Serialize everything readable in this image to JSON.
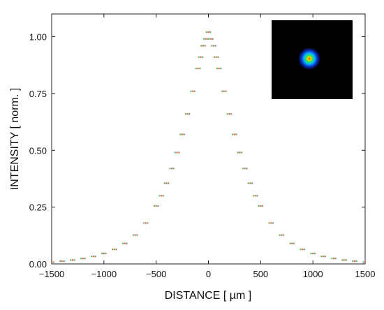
{
  "chart_data": {
    "type": "scatter",
    "xlabel": "DISTANCE [ µm ]",
    "ylabel": "INTENSITY [ norm. ]",
    "xlim": [
      -1500,
      1500
    ],
    "ylim": [
      0,
      1.1
    ],
    "x_ticks": [
      -1500,
      -1000,
      -500,
      0,
      500,
      1000,
      1500
    ],
    "y_ticks": [
      0.0,
      0.25,
      0.5,
      0.75,
      1.0
    ],
    "x_tick_labels": [
      "−1500",
      "−1000",
      "−500",
      "0",
      "500",
      "1000",
      "1500"
    ],
    "y_tick_labels": [
      "0.00",
      "0.25",
      "0.50",
      "0.75",
      "1.00"
    ],
    "grid": false,
    "legend": "none",
    "inset": "beam-spot-image",
    "series": [
      {
        "color": "#d9534f",
        "shift": 0,
        "x": [
          -1500,
          -1400,
          -1300,
          -1200,
          -1100,
          -1000,
          -900,
          -800,
          -700,
          -600,
          -500,
          -450,
          -400,
          -350,
          -300,
          -250,
          -200,
          -150,
          -100,
          -75,
          -50,
          -25,
          0,
          25,
          50,
          75,
          100,
          150,
          200,
          250,
          300,
          350,
          400,
          450,
          500,
          600,
          700,
          800,
          900,
          1000,
          1100,
          1200,
          1300,
          1400,
          1500
        ],
        "y": [
          0.008,
          0.012,
          0.017,
          0.024,
          0.033,
          0.046,
          0.064,
          0.09,
          0.127,
          0.18,
          0.255,
          0.3,
          0.355,
          0.42,
          0.49,
          0.57,
          0.66,
          0.76,
          0.86,
          0.91,
          0.96,
          0.99,
          1.02,
          0.99,
          0.96,
          0.91,
          0.86,
          0.76,
          0.66,
          0.57,
          0.49,
          0.42,
          0.355,
          0.3,
          0.255,
          0.18,
          0.127,
          0.09,
          0.064,
          0.046,
          0.033,
          0.024,
          0.017,
          0.012,
          0.008
        ]
      },
      {
        "color": "#4a90d9",
        "shift": 18,
        "x": [
          -1500,
          -1400,
          -1300,
          -1200,
          -1100,
          -1000,
          -900,
          -800,
          -700,
          -600,
          -500,
          -450,
          -400,
          -350,
          -300,
          -250,
          -200,
          -150,
          -100,
          -75,
          -50,
          -25,
          0,
          25,
          50,
          75,
          100,
          150,
          200,
          250,
          300,
          350,
          400,
          450,
          500,
          600,
          700,
          800,
          900,
          1000,
          1100,
          1200,
          1300,
          1400,
          1500
        ],
        "y": [
          0.008,
          0.012,
          0.017,
          0.024,
          0.033,
          0.046,
          0.064,
          0.09,
          0.127,
          0.18,
          0.255,
          0.3,
          0.355,
          0.42,
          0.49,
          0.57,
          0.66,
          0.76,
          0.86,
          0.91,
          0.96,
          0.99,
          1.02,
          0.99,
          0.96,
          0.91,
          0.86,
          0.76,
          0.66,
          0.57,
          0.49,
          0.42,
          0.355,
          0.3,
          0.255,
          0.18,
          0.127,
          0.09,
          0.064,
          0.046,
          0.033,
          0.024,
          0.017,
          0.012,
          0.008
        ]
      },
      {
        "color": "#5cb85c",
        "shift": -18,
        "x": [
          -1500,
          -1400,
          -1300,
          -1200,
          -1100,
          -1000,
          -900,
          -800,
          -700,
          -600,
          -500,
          -450,
          -400,
          -350,
          -300,
          -250,
          -200,
          -150,
          -100,
          -75,
          -50,
          -25,
          0,
          25,
          50,
          75,
          100,
          150,
          200,
          250,
          300,
          350,
          400,
          450,
          500,
          600,
          700,
          800,
          900,
          1000,
          1100,
          1200,
          1300,
          1400,
          1500
        ],
        "y": [
          0.008,
          0.012,
          0.017,
          0.024,
          0.033,
          0.046,
          0.064,
          0.09,
          0.127,
          0.18,
          0.255,
          0.3,
          0.355,
          0.42,
          0.49,
          0.57,
          0.66,
          0.76,
          0.86,
          0.91,
          0.96,
          0.99,
          1.02,
          0.99,
          0.96,
          0.91,
          0.86,
          0.76,
          0.66,
          0.57,
          0.49,
          0.42,
          0.355,
          0.3,
          0.255,
          0.18,
          0.127,
          0.09,
          0.064,
          0.046,
          0.033,
          0.024,
          0.017,
          0.012,
          0.008
        ]
      },
      {
        "color": "#f0ad4e",
        "shift": 9,
        "x": [
          -1500,
          -1400,
          -1300,
          -1200,
          -1100,
          -1000,
          -900,
          -800,
          -700,
          -600,
          -500,
          -450,
          -400,
          -350,
          -300,
          -250,
          -200,
          -150,
          -100,
          -75,
          -50,
          -25,
          0,
          25,
          50,
          75,
          100,
          150,
          200,
          250,
          300,
          350,
          400,
          450,
          500,
          600,
          700,
          800,
          900,
          1000,
          1100,
          1200,
          1300,
          1400,
          1500
        ],
        "y": [
          0.008,
          0.012,
          0.017,
          0.024,
          0.033,
          0.046,
          0.064,
          0.09,
          0.127,
          0.18,
          0.255,
          0.3,
          0.355,
          0.42,
          0.49,
          0.57,
          0.66,
          0.76,
          0.86,
          0.91,
          0.96,
          0.99,
          1.02,
          0.99,
          0.96,
          0.91,
          0.86,
          0.76,
          0.66,
          0.57,
          0.49,
          0.42,
          0.355,
          0.3,
          0.255,
          0.18,
          0.127,
          0.09,
          0.064,
          0.046,
          0.033,
          0.024,
          0.017,
          0.012,
          0.008
        ]
      }
    ]
  }
}
